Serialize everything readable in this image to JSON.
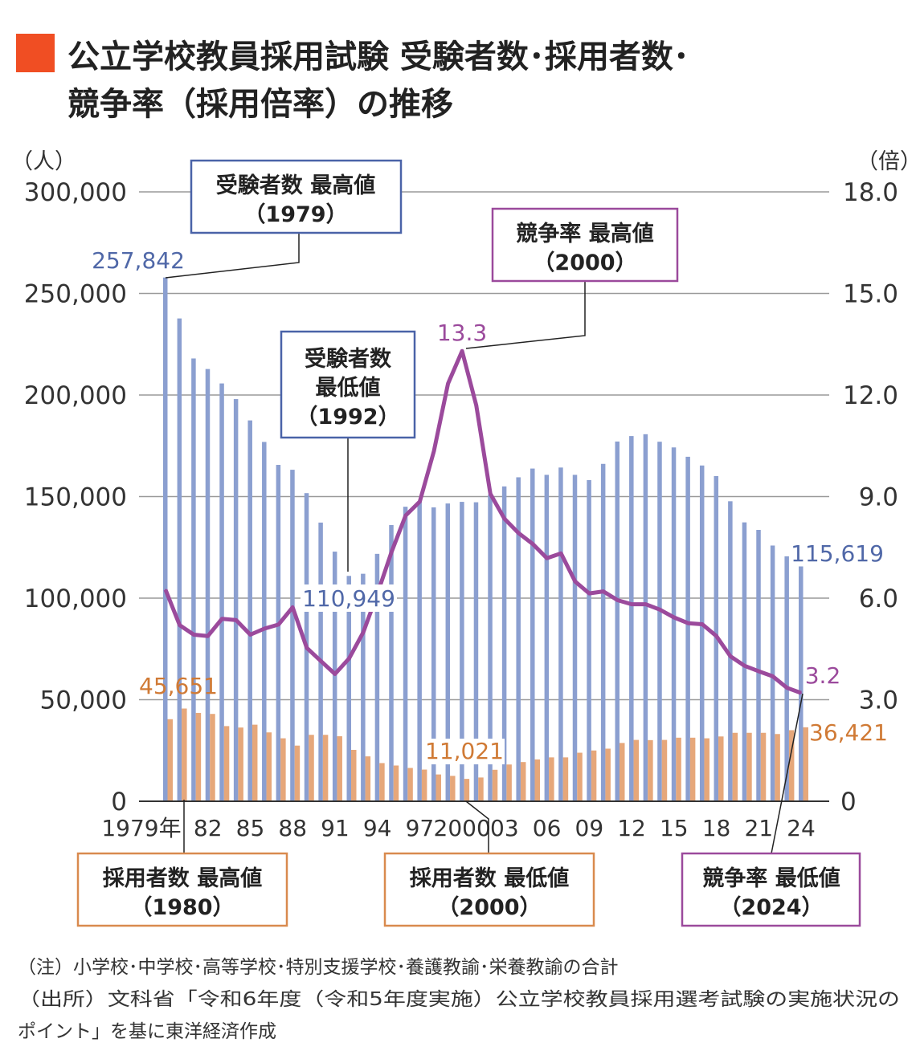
{
  "title": {
    "line1": "公立学校教員採用試験 受験者数･採用者数･",
    "line2": "競争率（採用倍率）の推移",
    "accent_color": "#f04e23"
  },
  "chart_data": {
    "type": "bar+line",
    "title": "公立学校教員採用試験 受験者数･採用者数･競争率（採用倍率）の推移",
    "left_axis": {
      "unit_label": "（人）",
      "ylim": [
        0,
        300000
      ],
      "ticks": [
        "0",
        "50,000",
        "100,000",
        "150,000",
        "200,000",
        "250,000",
        "300,000"
      ]
    },
    "right_axis": {
      "unit_label": "（倍）",
      "ylim": [
        0,
        18
      ],
      "ticks": [
        "0",
        "3.0",
        "6.0",
        "9.0",
        "12.0",
        "15.0",
        "18.0"
      ]
    },
    "x_tick_labels": [
      {
        "year": 1979,
        "label": "1979年"
      },
      {
        "year": 1982,
        "label": "82"
      },
      {
        "year": 1985,
        "label": "85"
      },
      {
        "year": 1988,
        "label": "88"
      },
      {
        "year": 1991,
        "label": "91"
      },
      {
        "year": 1994,
        "label": "94"
      },
      {
        "year": 1997,
        "label": "97"
      },
      {
        "year": 2000,
        "label": "2000"
      },
      {
        "year": 2003,
        "label": "03"
      },
      {
        "year": 2006,
        "label": "06"
      },
      {
        "year": 2009,
        "label": "09"
      },
      {
        "year": 2012,
        "label": "12"
      },
      {
        "year": 2015,
        "label": "15"
      },
      {
        "year": 2018,
        "label": "18"
      },
      {
        "year": 2021,
        "label": "21"
      },
      {
        "year": 2024,
        "label": "24"
      }
    ],
    "grid": true,
    "x": [
      1979,
      1980,
      1981,
      1982,
      1983,
      1984,
      1985,
      1986,
      1987,
      1988,
      1989,
      1990,
      1991,
      1992,
      1993,
      1994,
      1995,
      1996,
      1997,
      1998,
      1999,
      2000,
      2001,
      2002,
      2003,
      2004,
      2005,
      2006,
      2007,
      2008,
      2009,
      2010,
      2011,
      2012,
      2013,
      2014,
      2015,
      2016,
      2017,
      2018,
      2019,
      2020,
      2021,
      2022,
      2023,
      2024
    ],
    "series": [
      {
        "kind": "bar",
        "axis": "left",
        "color": "#8b9fd0",
        "values": [
          257842,
          237700,
          218000,
          212800,
          205700,
          198000,
          187500,
          176900,
          165600,
          163200,
          151700,
          137200,
          122900,
          110949,
          112000,
          121800,
          136000,
          145000,
          147400,
          144700,
          146600,
          147400,
          147200,
          151000,
          155000,
          159500,
          163800,
          160700,
          164300,
          160700,
          158100,
          166100,
          177100,
          179800,
          180700,
          177000,
          174200,
          169600,
          165300,
          160100,
          147700,
          137300,
          133600,
          125900,
          120600,
          115619
        ]
      },
      {
        "kind": "bar",
        "axis": "left",
        "color": "#e6a77a",
        "values": [
          40400,
          45651,
          43500,
          43000,
          37000,
          36300,
          37700,
          33900,
          31000,
          27400,
          32700,
          32700,
          32000,
          25300,
          22100,
          18800,
          17600,
          16400,
          15600,
          13200,
          12500,
          11021,
          11700,
          15500,
          18100,
          19300,
          20600,
          21600,
          21600,
          23900,
          25000,
          25900,
          28700,
          30200,
          30100,
          30200,
          31300,
          31300,
          31000,
          31900,
          33700,
          33700,
          33700,
          33100,
          35000,
          36421
        ]
      },
      {
        "kind": "line",
        "axis": "right",
        "color": "#9b4a9c",
        "values": [
          6.25,
          5.2,
          4.92,
          4.88,
          5.39,
          5.35,
          4.92,
          5.1,
          5.22,
          5.73,
          4.53,
          4.14,
          3.76,
          4.22,
          4.99,
          6.13,
          7.36,
          8.44,
          8.85,
          10.34,
          12.34,
          13.3,
          11.7,
          9.08,
          8.34,
          7.92,
          7.6,
          7.18,
          7.32,
          6.49,
          6.14,
          6.2,
          5.94,
          5.82,
          5.82,
          5.66,
          5.43,
          5.26,
          5.23,
          4.88,
          4.28,
          4.0,
          3.84,
          3.69,
          3.35,
          3.2
        ]
      }
    ],
    "data_labels": {
      "applicants_max": "257,842",
      "applicants_min": "110,949",
      "applicants_last": "115,619",
      "hires_max": "45,651",
      "hires_min": "11,021",
      "hires_last": "36,421",
      "ratio_max": "13.3",
      "ratio_last": "3.2"
    },
    "annotations": {
      "applicants_max": {
        "line1": "受験者数 最高値",
        "line2": "（1979）",
        "color": "#4a63a8"
      },
      "ratio_max": {
        "line1": "競争率 最高値",
        "line2": "（2000）",
        "color": "#9b4a9c"
      },
      "applicants_min": {
        "line1": "受験者数",
        "line2": "最低値",
        "line3": "（1992）",
        "color": "#4a63a8"
      },
      "hires_max": {
        "line1": "採用者数 最高値",
        "line2": "（1980）",
        "color": "#d98a4e"
      },
      "hires_min": {
        "line1": "採用者数 最低値",
        "line2": "（2000）",
        "color": "#d98a4e"
      },
      "ratio_min": {
        "line1": "競争率 最低値",
        "line2": "（2024）",
        "color": "#9b4a9c"
      }
    },
    "label_colors": {
      "applicants": "#5068a8",
      "hires": "#d07a35",
      "ratio": "#9b4a9c"
    }
  },
  "footnotes": {
    "note": "（注）小学校･中学校･高等学校･特別支援学校･養護教諭･栄養教諭の合計",
    "source1": "（出所）文科省「令和6年度（令和5年度実施）公立学校教員採用選考試験の実施状況の",
    "source2": "ポイント」を基に東洋経済作成"
  }
}
